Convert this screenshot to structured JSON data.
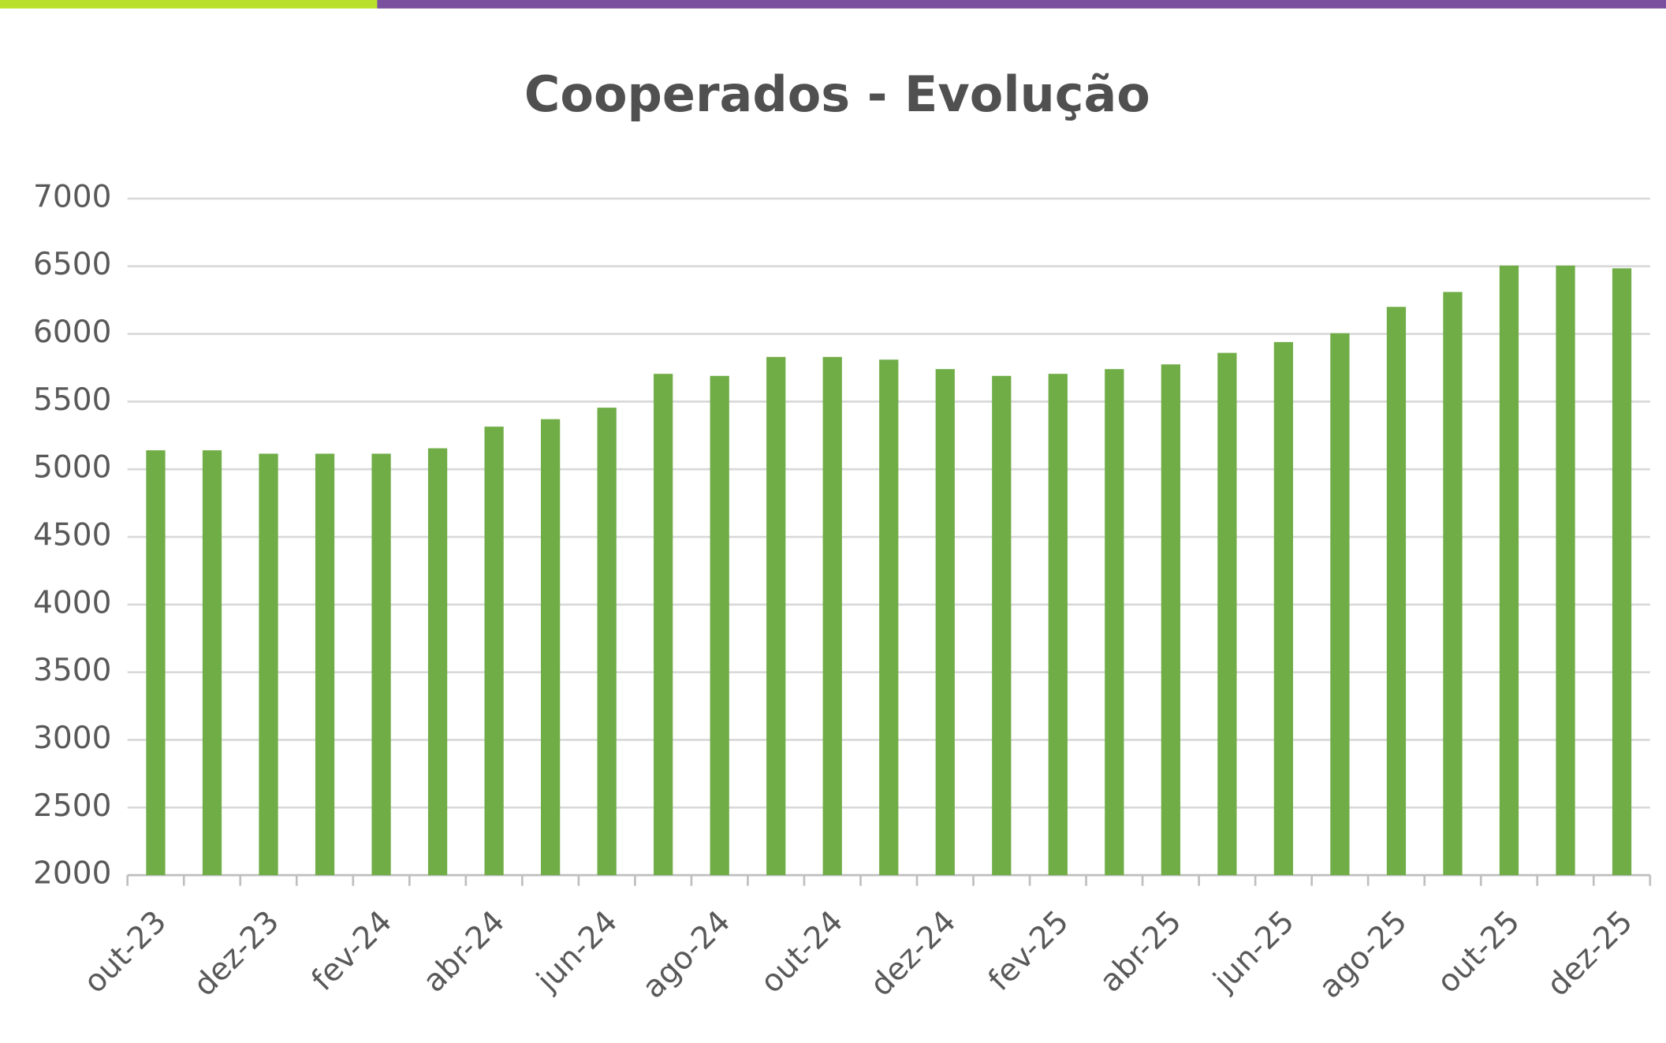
{
  "chart_data": {
    "type": "bar",
    "title": "Cooperados - Evolução",
    "categories": [
      "out-23",
      null,
      "dez-23",
      null,
      "fev-24",
      null,
      "abr-24",
      null,
      "jun-24",
      null,
      "ago-24",
      null,
      "out-24",
      null,
      "dez-24",
      null,
      "fev-25",
      null,
      "abr-25",
      null,
      "jun-25",
      null,
      "ago-25",
      null,
      "out-25",
      null,
      "dez-25"
    ],
    "values": [
      5140,
      5140,
      5115,
      5115,
      5115,
      5155,
      5315,
      5370,
      5455,
      5705,
      5690,
      5830,
      5830,
      5810,
      5740,
      5690,
      5705,
      5740,
      5775,
      5860,
      5940,
      6005,
      6200,
      6310,
      6505,
      6505,
      6485
    ],
    "color": "#70ad47",
    "ylim": [
      2000,
      7000
    ],
    "yticks": [
      2000,
      2500,
      3000,
      3500,
      4000,
      4500,
      5000,
      5500,
      6000,
      6500,
      7000
    ],
    "grid": true
  }
}
